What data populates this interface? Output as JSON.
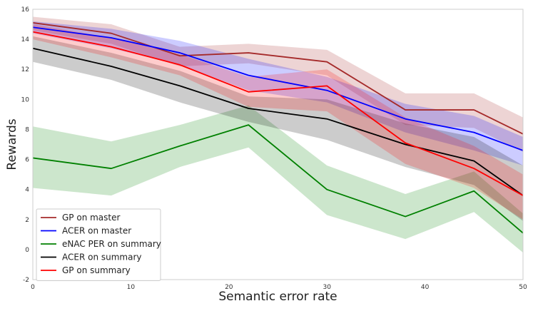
{
  "chart_data": {
    "type": "line",
    "title": "",
    "xlabel": "Semantic error rate",
    "ylabel": "Rewards",
    "xlim": [
      0,
      50
    ],
    "ylim": [
      -2,
      16
    ],
    "xticks": [
      0,
      10,
      20,
      30,
      40,
      50
    ],
    "yticks": [
      -2,
      0,
      2,
      4,
      6,
      8,
      10,
      12,
      14,
      16
    ],
    "grid": false,
    "legend_position": "lower-left",
    "series": [
      {
        "name": "GP on master",
        "color": "#a52a2a",
        "x": [
          0,
          8,
          15,
          22,
          30,
          38,
          45,
          50
        ],
        "y": [
          15.1,
          14.4,
          12.9,
          13.1,
          12.5,
          9.3,
          9.3,
          7.7
        ],
        "band_upper": [
          15.5,
          15.0,
          13.5,
          13.7,
          13.3,
          10.4,
          10.4,
          8.8
        ],
        "band_lower": [
          14.6,
          13.7,
          12.2,
          12.4,
          11.6,
          8.3,
          8.1,
          6.5
        ]
      },
      {
        "name": "ACER on master",
        "color": "#0000ff",
        "x": [
          0,
          8,
          15,
          22,
          30,
          38,
          45,
          50
        ],
        "y": [
          14.8,
          14.1,
          13.1,
          11.6,
          10.6,
          8.7,
          7.8,
          6.6
        ],
        "band_upper": [
          15.2,
          14.7,
          13.9,
          12.7,
          11.5,
          9.7,
          8.9,
          7.5
        ],
        "band_lower": [
          14.4,
          13.4,
          12.3,
          10.6,
          9.8,
          7.8,
          6.6,
          5.6
        ]
      },
      {
        "name": "eNAC PER on summary",
        "color": "#008000",
        "x": [
          0,
          8,
          15,
          22,
          30,
          38,
          45,
          50
        ],
        "y": [
          6.1,
          5.4,
          6.9,
          8.3,
          4.0,
          2.2,
          3.9,
          1.1
        ],
        "band_upper": [
          8.2,
          7.2,
          8.3,
          9.6,
          5.6,
          3.7,
          5.2,
          2.4
        ],
        "band_lower": [
          4.1,
          3.6,
          5.5,
          6.8,
          2.3,
          0.7,
          2.5,
          -0.2
        ]
      },
      {
        "name": "ACER on summary",
        "color": "#000000",
        "x": [
          0,
          8,
          15,
          22,
          30,
          38,
          45,
          50
        ],
        "y": [
          13.4,
          12.2,
          10.9,
          9.4,
          8.7,
          7.0,
          5.9,
          3.6
        ],
        "band_upper": [
          14.2,
          13.1,
          11.9,
          10.2,
          10.0,
          8.4,
          7.5,
          5.6
        ],
        "band_lower": [
          12.5,
          11.3,
          9.8,
          8.5,
          7.3,
          5.5,
          4.3,
          1.9
        ]
      },
      {
        "name": "GP on summary",
        "color": "#ff0000",
        "x": [
          0,
          8,
          15,
          22,
          30,
          38,
          45,
          50
        ],
        "y": [
          14.5,
          13.5,
          12.3,
          10.5,
          10.9,
          7.1,
          5.4,
          3.6
        ],
        "band_upper": [
          15.0,
          14.1,
          13.0,
          11.5,
          12.0,
          8.8,
          6.9,
          5.0
        ],
        "band_lower": [
          14.0,
          12.8,
          11.6,
          9.5,
          9.2,
          5.7,
          4.1,
          2.0
        ]
      }
    ]
  }
}
